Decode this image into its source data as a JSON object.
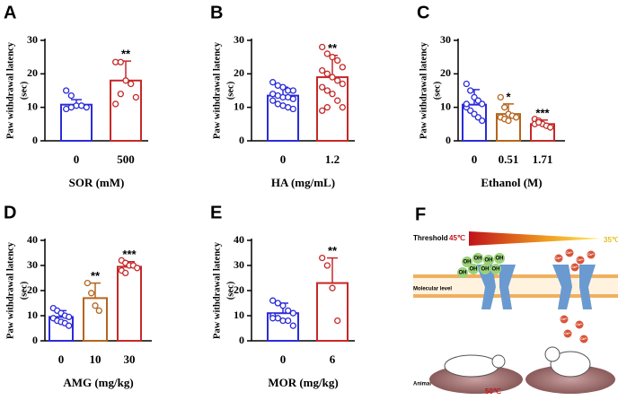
{
  "chart_data": [
    {
      "type": "bar",
      "panel": "A",
      "ylabel": "Paw withdrawal latency",
      "yunit": "(sec)",
      "xlabel": "SOR (mM)",
      "categories": [
        "0",
        "500"
      ],
      "values": [
        10.8,
        18
      ],
      "errors": [
        1.5,
        5.8
      ],
      "significance": [
        null,
        "**"
      ],
      "colors": [
        "#2b2bd9",
        "#c62828"
      ],
      "ylim": [
        0,
        30
      ],
      "yticks": [
        0,
        10,
        20,
        30
      ],
      "points": [
        [
          15,
          13.5,
          10.5,
          10.5,
          10,
          9.5,
          10
        ],
        [
          23.5,
          23.5,
          18,
          17,
          13,
          11,
          14
        ]
      ]
    },
    {
      "type": "bar",
      "panel": "B",
      "ylabel": "Paw withdrawal latency",
      "yunit": "(sec)",
      "xlabel": "HA (mg/mL)",
      "categories": [
        "0",
        "1.2"
      ],
      "values": [
        13.5,
        19
      ],
      "errors": [
        2.5,
        6.5
      ],
      "significance": [
        null,
        "**"
      ],
      "colors": [
        "#2b2bd9",
        "#c62828"
      ],
      "ylim": [
        0,
        30
      ],
      "yticks": [
        0,
        10,
        20,
        30
      ],
      "points": [
        [
          17.5,
          16.5,
          16,
          15,
          15,
          14,
          13.5,
          13,
          13,
          12.5,
          12,
          11,
          10.5,
          10,
          9.5
        ],
        [
          28,
          26,
          25,
          24,
          22,
          21,
          20,
          19,
          18,
          17,
          16,
          15,
          14,
          12,
          10,
          9,
          10
        ]
      ]
    },
    {
      "type": "bar",
      "panel": "C",
      "ylabel": "Paw withdrawal latency",
      "yunit": "(sec)",
      "xlabel": "Ethanol (M)",
      "categories": [
        "0",
        "0.51",
        "1.71"
      ],
      "values": [
        10.8,
        8,
        5
      ],
      "errors": [
        4.5,
        3,
        1.2
      ],
      "significance": [
        null,
        "*",
        "***"
      ],
      "colors": [
        "#2b2bd9",
        "#b5651d",
        "#c62828"
      ],
      "ylim": [
        0,
        30
      ],
      "yticks": [
        0,
        10,
        20,
        30
      ],
      "points": [
        [
          17,
          15,
          13,
          12,
          11,
          10,
          9,
          8,
          7,
          6,
          11
        ],
        [
          13,
          10,
          8,
          7.5,
          7,
          7,
          6.5,
          6
        ],
        [
          6.5,
          6,
          5,
          4.5,
          4,
          5,
          5.5
        ]
      ]
    },
    {
      "type": "bar",
      "panel": "D",
      "ylabel": "Paw withdrawal latency",
      "yunit": "(sec)",
      "xlabel": "AMG (mg/kg)",
      "categories": [
        "0",
        "10",
        "30"
      ],
      "values": [
        9.5,
        17,
        29.5
      ],
      "errors": [
        2.5,
        6,
        2
      ],
      "significance": [
        null,
        "**",
        "***"
      ],
      "colors": [
        "#2b2bd9",
        "#b5651d",
        "#c62828"
      ],
      "ylim": [
        0,
        40
      ],
      "yticks": [
        0,
        10,
        20,
        30,
        40
      ],
      "points": [
        [
          13,
          12,
          11,
          10,
          9.5,
          9,
          8,
          7.5,
          7,
          6
        ],
        [
          23,
          19,
          14,
          12
        ],
        [
          32,
          31,
          30,
          30,
          29,
          28,
          27
        ]
      ]
    },
    {
      "type": "bar",
      "panel": "E",
      "ylabel": "Paw withdrawal latency",
      "yunit": "(sec)",
      "xlabel": "MOR (mg/kg)",
      "categories": [
        "0",
        "6"
      ],
      "values": [
        11,
        23
      ],
      "errors": [
        4,
        10
      ],
      "significance": [
        null,
        "**"
      ],
      "colors": [
        "#2b2bd9",
        "#c62828"
      ],
      "ylim": [
        0,
        40
      ],
      "yticks": [
        0,
        10,
        20,
        30,
        40
      ],
      "points": [
        [
          16,
          15,
          14,
          12,
          11,
          10,
          9,
          8,
          8,
          6,
          9
        ],
        [
          33,
          30,
          21,
          8
        ]
      ]
    }
  ],
  "diagram": {
    "panel": "F",
    "threshold": "Threshold",
    "hot": "45℃",
    "cold": "35℃",
    "molecular": "Molecular level",
    "animal": "Animal level",
    "plate": "50℃",
    "oh": "OH",
    "ca": "Ca²⁺"
  }
}
